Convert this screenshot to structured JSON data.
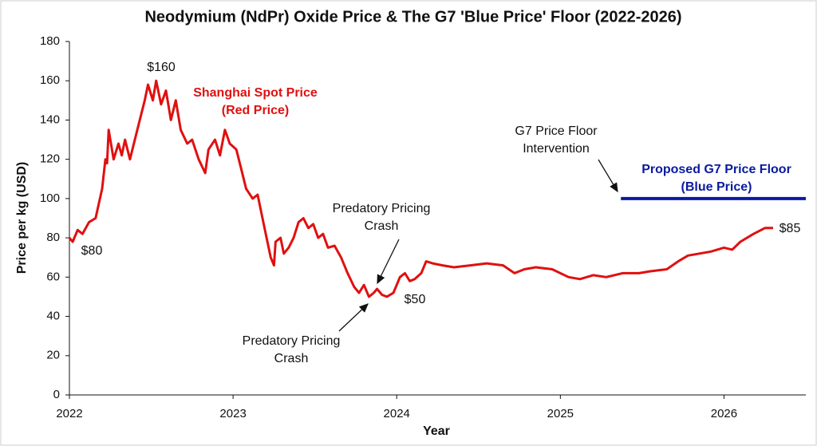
{
  "chart_data": {
    "type": "line",
    "title": "Neodymium (NdPr) Oxide Price & The G7 'Blue Price' Floor (2022-2026)",
    "x_label": "Year",
    "y_label": "Price per kg (USD)",
    "xlim": [
      2022,
      2026.5
    ],
    "xticks": [
      2022,
      2023,
      2024,
      2025,
      2026
    ],
    "ylim": [
      0,
      180
    ],
    "yticks": [
      0,
      20,
      40,
      60,
      80,
      100,
      120,
      140,
      160,
      180
    ],
    "grid": false,
    "series": [
      {
        "color": "#e01010",
        "x": [
          2022.0,
          2022.02,
          2022.05,
          2022.08,
          2022.12,
          2022.16,
          2022.2,
          2022.22,
          2022.23,
          2022.24,
          2022.27,
          2022.3,
          2022.32,
          2022.34,
          2022.37,
          2022.4,
          2022.43,
          2022.46,
          2022.48,
          2022.51,
          2022.53,
          2022.56,
          2022.59,
          2022.62,
          2022.65,
          2022.68,
          2022.72,
          2022.75,
          2022.79,
          2022.83,
          2022.85,
          2022.89,
          2022.92,
          2022.95,
          2022.98,
          2023.02,
          2023.05,
          2023.08,
          2023.12,
          2023.15,
          2023.18,
          2023.2,
          2023.23,
          2023.25,
          2023.26,
          2023.29,
          2023.31,
          2023.34,
          2023.37,
          2023.4,
          2023.43,
          2023.46,
          2023.49,
          2023.52,
          2023.55,
          2023.58,
          2023.62,
          2023.66,
          2023.7,
          2023.74,
          2023.77,
          2023.8,
          2023.83,
          2023.86,
          2023.88,
          2023.91,
          2023.94,
          2023.98,
          2024.02,
          2024.05,
          2024.08,
          2024.11,
          2024.15,
          2024.18,
          2024.22,
          2024.28,
          2024.35,
          2024.45,
          2024.55,
          2024.65,
          2024.72,
          2024.78,
          2024.85,
          2024.95,
          2025.05,
          2025.12,
          2025.2,
          2025.28,
          2025.38,
          2025.48,
          2025.55,
          2025.65,
          2025.72,
          2025.78,
          2025.85,
          2025.92,
          2026.0,
          2026.05,
          2026.1,
          2026.18,
          2026.25,
          2026.3
        ],
        "values": [
          80,
          78,
          84,
          82,
          88,
          90,
          105,
          120,
          118,
          135,
          120,
          128,
          122,
          130,
          120,
          130,
          140,
          150,
          158,
          150,
          160,
          148,
          155,
          140,
          150,
          135,
          128,
          130,
          120,
          113,
          125,
          130,
          122,
          135,
          128,
          125,
          115,
          105,
          100,
          102,
          90,
          82,
          70,
          66,
          78,
          80,
          72,
          75,
          80,
          88,
          90,
          85,
          87,
          80,
          82,
          75,
          76,
          70,
          62,
          55,
          52,
          56,
          50,
          52,
          54,
          51,
          50,
          52,
          60,
          62,
          58,
          59,
          62,
          68,
          67,
          66,
          65,
          66,
          67,
          66,
          62,
          64,
          65,
          64,
          60,
          59,
          61,
          60,
          62,
          62,
          63,
          64,
          68,
          71,
          72,
          73,
          75,
          74,
          78,
          82,
          85,
          85
        ]
      },
      {
        "color": "#0a1aa0",
        "x": [
          2025.37,
          2026.5
        ],
        "values": [
          100,
          100
        ]
      }
    ],
    "annotations": [
      {
        "text": [
          "$160"
        ]
      },
      {
        "text": [
          "$80"
        ]
      },
      {
        "text": [
          "$50"
        ]
      },
      {
        "text": [
          "$85"
        ]
      },
      {
        "text": [
          "Shanghai Spot Price",
          "(Red Price)"
        ],
        "color": "#e01010"
      },
      {
        "text": [
          "Predatory Pricing",
          "Crash"
        ]
      },
      {
        "text": [
          "Predatory Pricing",
          "Crash"
        ]
      },
      {
        "text": [
          "G7 Price Floor",
          "Intervention"
        ]
      },
      {
        "text": [
          "Proposed G7 Price Floor",
          "(Blue Price)"
        ],
        "color": "#0a1aa0"
      }
    ]
  }
}
